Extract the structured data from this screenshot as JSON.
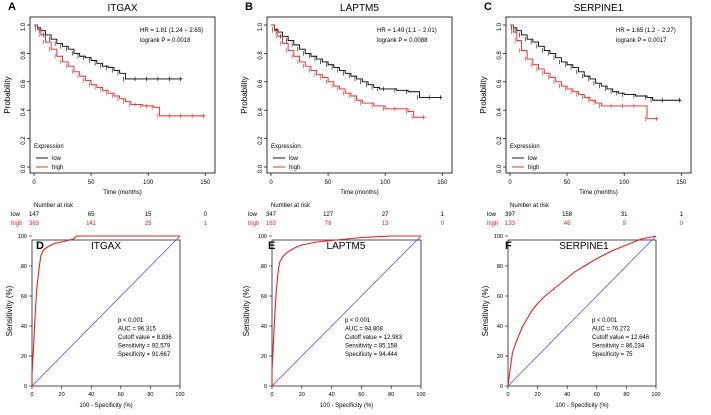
{
  "colors": {
    "low": "#000000",
    "high": "#e8211f",
    "diagonal": "#6a6ad8",
    "roc": "#e8211f",
    "axis": "#000000"
  },
  "km_common": {
    "xlabel": "Time (months)",
    "ylabel": "Probability",
    "xticks": [
      0,
      50,
      100,
      150
    ],
    "yticks": [
      "0.0",
      "0.2",
      "0.4",
      "0.6",
      "0.8",
      "1.0"
    ],
    "xlim": [
      0,
      155
    ],
    "ylim": [
      0,
      1
    ],
    "legend_title": "Expression",
    "legend_low": "low",
    "legend_high": "high",
    "risk_title": "Number at risk"
  },
  "roc_common": {
    "xlabel": "100 - Specificity (%)",
    "ylabel": "Sensitivity (%)",
    "ticks": [
      "0",
      "20",
      "40",
      "60",
      "80",
      "100"
    ],
    "xlim": [
      0,
      100
    ],
    "ylim": [
      0,
      100
    ]
  },
  "chart_data": [
    {
      "type": "line",
      "kind": "kaplan-meier",
      "panel": "A",
      "title": "ITGAX",
      "hr_text": "HR = 1.81 (1.24 − 2.65)",
      "p_text": "logrank P = 0.0018",
      "risk": {
        "low": [
          "147",
          "65",
          "15",
          "0"
        ],
        "high": [
          "363",
          "141",
          "25",
          "1"
        ]
      },
      "series": [
        {
          "name": "low",
          "points": [
            [
              0,
              1.0
            ],
            [
              3,
              0.98
            ],
            [
              6,
              0.96
            ],
            [
              10,
              0.93
            ],
            [
              15,
              0.9
            ],
            [
              20,
              0.87
            ],
            [
              25,
              0.85
            ],
            [
              30,
              0.83
            ],
            [
              35,
              0.8
            ],
            [
              40,
              0.78
            ],
            [
              45,
              0.77
            ],
            [
              50,
              0.75
            ],
            [
              55,
              0.73
            ],
            [
              60,
              0.71
            ],
            [
              65,
              0.7
            ],
            [
              70,
              0.68
            ],
            [
              75,
              0.66
            ],
            [
              80,
              0.62
            ],
            [
              90,
              0.62
            ],
            [
              100,
              0.62
            ],
            [
              110,
              0.62
            ],
            [
              120,
              0.62
            ],
            [
              130,
              0.62
            ]
          ]
        },
        {
          "name": "high",
          "points": [
            [
              0,
              1.0
            ],
            [
              3,
              0.97
            ],
            [
              6,
              0.93
            ],
            [
              10,
              0.88
            ],
            [
              15,
              0.83
            ],
            [
              20,
              0.78
            ],
            [
              25,
              0.74
            ],
            [
              30,
              0.71
            ],
            [
              35,
              0.67
            ],
            [
              40,
              0.64
            ],
            [
              45,
              0.61
            ],
            [
              50,
              0.58
            ],
            [
              55,
              0.56
            ],
            [
              60,
              0.54
            ],
            [
              65,
              0.52
            ],
            [
              70,
              0.5
            ],
            [
              75,
              0.48
            ],
            [
              80,
              0.46
            ],
            [
              85,
              0.44
            ],
            [
              90,
              0.44
            ],
            [
              95,
              0.43
            ],
            [
              100,
              0.43
            ],
            [
              105,
              0.42
            ],
            [
              110,
              0.36
            ],
            [
              120,
              0.36
            ],
            [
              130,
              0.36
            ],
            [
              140,
              0.36
            ],
            [
              150,
              0.36
            ]
          ]
        }
      ]
    },
    {
      "type": "line",
      "kind": "kaplan-meier",
      "panel": "B",
      "title": "LAPTM5",
      "hr_text": "HR = 1.49 (1.1 − 2.01)",
      "p_text": "logrank P = 0.0088",
      "risk": {
        "low": [
          "347",
          "127",
          "27",
          "1"
        ],
        "high": [
          "163",
          "79",
          "13",
          "0"
        ]
      },
      "series": [
        {
          "name": "low",
          "points": [
            [
              0,
              1.0
            ],
            [
              3,
              0.97
            ],
            [
              6,
              0.95
            ],
            [
              10,
              0.92
            ],
            [
              15,
              0.89
            ],
            [
              20,
              0.86
            ],
            [
              25,
              0.83
            ],
            [
              30,
              0.8
            ],
            [
              35,
              0.78
            ],
            [
              40,
              0.76
            ],
            [
              45,
              0.74
            ],
            [
              50,
              0.72
            ],
            [
              55,
              0.7
            ],
            [
              60,
              0.68
            ],
            [
              65,
              0.66
            ],
            [
              70,
              0.64
            ],
            [
              75,
              0.62
            ],
            [
              80,
              0.6
            ],
            [
              85,
              0.58
            ],
            [
              90,
              0.56
            ],
            [
              95,
              0.55
            ],
            [
              100,
              0.55
            ],
            [
              110,
              0.54
            ],
            [
              120,
              0.53
            ],
            [
              130,
              0.49
            ],
            [
              140,
              0.49
            ],
            [
              150,
              0.49
            ]
          ]
        },
        {
          "name": "high",
          "points": [
            [
              0,
              1.0
            ],
            [
              3,
              0.96
            ],
            [
              6,
              0.92
            ],
            [
              10,
              0.87
            ],
            [
              15,
              0.82
            ],
            [
              20,
              0.78
            ],
            [
              25,
              0.74
            ],
            [
              30,
              0.71
            ],
            [
              35,
              0.68
            ],
            [
              40,
              0.65
            ],
            [
              45,
              0.63
            ],
            [
              50,
              0.6
            ],
            [
              55,
              0.57
            ],
            [
              60,
              0.55
            ],
            [
              65,
              0.52
            ],
            [
              70,
              0.5
            ],
            [
              75,
              0.47
            ],
            [
              80,
              0.45
            ],
            [
              90,
              0.43
            ],
            [
              100,
              0.41
            ],
            [
              110,
              0.41
            ],
            [
              120,
              0.39
            ],
            [
              125,
              0.35
            ],
            [
              135,
              0.35
            ]
          ]
        }
      ]
    },
    {
      "type": "line",
      "kind": "kaplan-meier",
      "panel": "C",
      "title": "SERPINE1",
      "hr_text": "HR = 1.65 (1.2 − 2.27)",
      "p_text": "logrank P = 0.0017",
      "risk": {
        "low": [
          "397",
          "158",
          "31",
          "1"
        ],
        "high": [
          "133",
          "46",
          "9",
          "0"
        ]
      },
      "series": [
        {
          "name": "low",
          "points": [
            [
              0,
              1.0
            ],
            [
              3,
              0.98
            ],
            [
              6,
              0.96
            ],
            [
              10,
              0.93
            ],
            [
              15,
              0.9
            ],
            [
              20,
              0.88
            ],
            [
              25,
              0.85
            ],
            [
              30,
              0.82
            ],
            [
              35,
              0.8
            ],
            [
              40,
              0.77
            ],
            [
              45,
              0.74
            ],
            [
              50,
              0.72
            ],
            [
              55,
              0.7
            ],
            [
              60,
              0.67
            ],
            [
              65,
              0.64
            ],
            [
              70,
              0.62
            ],
            [
              75,
              0.59
            ],
            [
              80,
              0.57
            ],
            [
              85,
              0.55
            ],
            [
              90,
              0.53
            ],
            [
              95,
              0.52
            ],
            [
              100,
              0.51
            ],
            [
              110,
              0.5
            ],
            [
              120,
              0.49
            ],
            [
              125,
              0.47
            ],
            [
              135,
              0.47
            ],
            [
              150,
              0.47
            ]
          ]
        },
        {
          "name": "high",
          "points": [
            [
              0,
              1.0
            ],
            [
              3,
              0.95
            ],
            [
              6,
              0.89
            ],
            [
              10,
              0.82
            ],
            [
              15,
              0.76
            ],
            [
              20,
              0.72
            ],
            [
              25,
              0.69
            ],
            [
              30,
              0.66
            ],
            [
              35,
              0.63
            ],
            [
              40,
              0.6
            ],
            [
              45,
              0.57
            ],
            [
              50,
              0.55
            ],
            [
              55,
              0.53
            ],
            [
              60,
              0.51
            ],
            [
              65,
              0.49
            ],
            [
              70,
              0.47
            ],
            [
              75,
              0.45
            ],
            [
              80,
              0.43
            ],
            [
              90,
              0.43
            ],
            [
              100,
              0.43
            ],
            [
              110,
              0.43
            ],
            [
              120,
              0.34
            ],
            [
              130,
              0.34
            ]
          ]
        }
      ]
    },
    {
      "type": "line",
      "kind": "roc",
      "panel": "D",
      "title": "ITGAX",
      "stats": [
        "p < 0.001",
        "AUC = 96.315",
        "Cutoff value = 8.836",
        "Sensitivity = 92.579",
        "Specificity = 91.667"
      ],
      "series": [
        {
          "name": "ROC",
          "points": [
            [
              0,
              0
            ],
            [
              0,
              8
            ],
            [
              1,
              25
            ],
            [
              2,
              45
            ],
            [
              3,
              62
            ],
            [
              4,
              72
            ],
            [
              5,
              80
            ],
            [
              6,
              87
            ],
            [
              8,
              91
            ],
            [
              11,
              93
            ],
            [
              15,
              95
            ],
            [
              20,
              96
            ],
            [
              28,
              98
            ],
            [
              30,
              100
            ],
            [
              60,
              100
            ],
            [
              100,
              100
            ]
          ]
        }
      ]
    },
    {
      "type": "line",
      "kind": "roc",
      "panel": "E",
      "title": "LAPTM5",
      "stats": [
        "p < 0.001",
        "AUC = 94.808",
        "Cutoff value = 12.983",
        "Sensitivity = 85.158",
        "Specificity = 94.444"
      ],
      "series": [
        {
          "name": "ROC",
          "points": [
            [
              0,
              0
            ],
            [
              0,
              10
            ],
            [
              1,
              30
            ],
            [
              2,
              50
            ],
            [
              3,
              65
            ],
            [
              4,
              75
            ],
            [
              5,
              82
            ],
            [
              7,
              86
            ],
            [
              10,
              89
            ],
            [
              15,
              92
            ],
            [
              20,
              94
            ],
            [
              30,
              96
            ],
            [
              40,
              97
            ],
            [
              50,
              98
            ],
            [
              60,
              99
            ],
            [
              80,
              100
            ],
            [
              100,
              100
            ]
          ]
        }
      ]
    },
    {
      "type": "line",
      "kind": "roc",
      "panel": "F",
      "title": "SERPINE1",
      "stats": [
        "p < 0.001",
        "AUC = 76.272",
        "Cutoff value = 12.646",
        "Sensitivity = 86.234",
        "Specificity = 75"
      ],
      "series": [
        {
          "name": "ROC",
          "points": [
            [
              0,
              0
            ],
            [
              1,
              8
            ],
            [
              2,
              15
            ],
            [
              3,
              22
            ],
            [
              5,
              28
            ],
            [
              7,
              33
            ],
            [
              10,
              40
            ],
            [
              13,
              45
            ],
            [
              16,
              50
            ],
            [
              20,
              55
            ],
            [
              25,
              60
            ],
            [
              30,
              64
            ],
            [
              35,
              68
            ],
            [
              40,
              72
            ],
            [
              45,
              76
            ],
            [
              50,
              79
            ],
            [
              55,
              82
            ],
            [
              60,
              85
            ],
            [
              70,
              90
            ],
            [
              80,
              94
            ],
            [
              90,
              98
            ],
            [
              100,
              100
            ]
          ]
        }
      ]
    }
  ]
}
